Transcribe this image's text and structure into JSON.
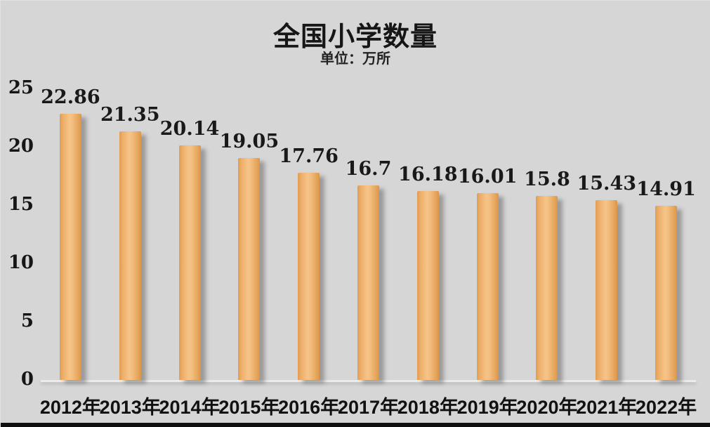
{
  "chart_data": {
    "type": "bar",
    "title": "全国小学数量",
    "subtitle": "单位：万所",
    "categories": [
      "2012年",
      "2013年",
      "2014年",
      "2015年",
      "2016年",
      "2017年",
      "2018年",
      "2019年",
      "2020年",
      "2021年",
      "2022年"
    ],
    "values": [
      22.86,
      21.35,
      20.14,
      19.05,
      17.76,
      16.7,
      16.18,
      16.01,
      15.8,
      15.43,
      14.91
    ],
    "value_labels": [
      "22.86",
      "21.35",
      "20.14",
      "19.05",
      "17.76",
      "16.7",
      "16.18",
      "16.01",
      "15.8",
      "15.43",
      "14.91"
    ],
    "xlabel": "",
    "ylabel": "",
    "ylim": [
      0,
      25
    ],
    "yticks": [
      0,
      5,
      10,
      15,
      20,
      25
    ],
    "grid": false,
    "legend_position": "none",
    "data_labels_shown": true,
    "colors": {
      "background": "#d6d6d6",
      "bar_main": "#f0b877",
      "bar_edge_dark": "#dc9549",
      "bar_highlight": "#f6c489",
      "text": "#161616",
      "baseline": "#ebebeb",
      "bottom_strip": "#101010"
    }
  }
}
